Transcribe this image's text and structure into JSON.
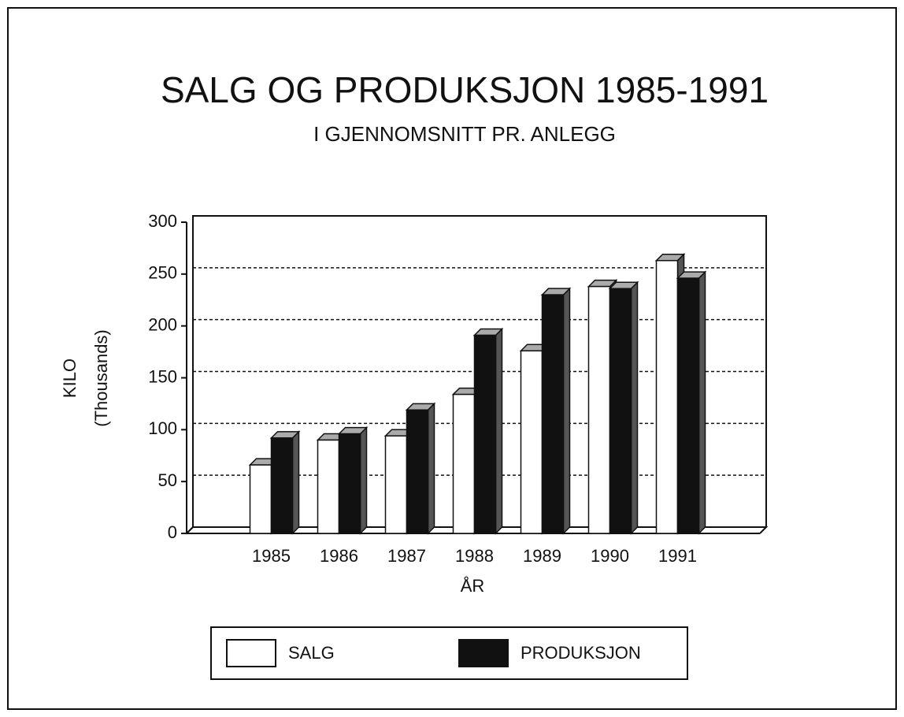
{
  "chart_data": {
    "type": "bar",
    "title": "SALG OG PRODUKSJON 1985-1991",
    "subtitle": "I GJENNOMSNITT PR. ANLEGG",
    "y_label": [
      "KILO",
      "(Thousands)"
    ],
    "x_label": "ÅR",
    "categories": [
      "1985",
      "1986",
      "1987",
      "1988",
      "1989",
      "1990",
      "1991"
    ],
    "series": [
      {
        "name": "SALG",
        "color": "#ffffff",
        "values": [
          66,
          90,
          94,
          134,
          176,
          238,
          263
        ]
      },
      {
        "name": "PRODUKSJON",
        "color": "#111111",
        "values": [
          92,
          96,
          119,
          191,
          230,
          236,
          246
        ]
      }
    ],
    "ylim": [
      0,
      300
    ],
    "yticks": [
      0,
      50,
      100,
      150,
      200,
      250,
      300
    ],
    "grid": true,
    "legend": "bottom"
  }
}
